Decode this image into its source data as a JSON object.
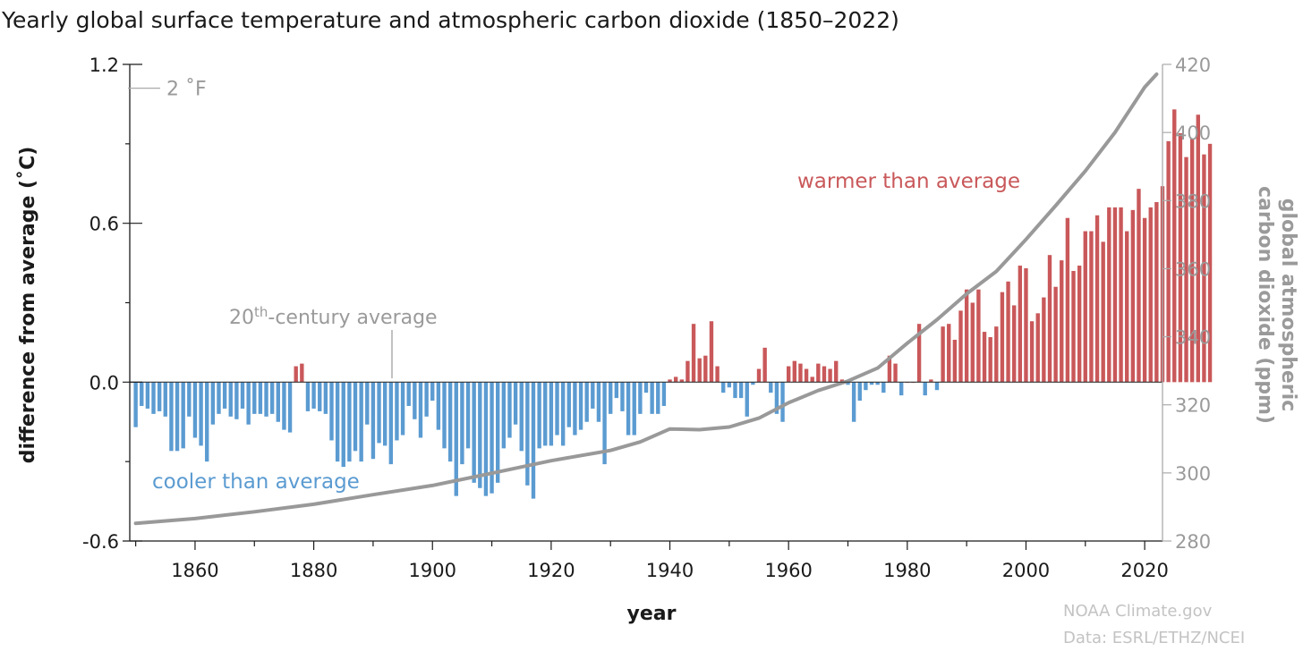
{
  "chart_data": {
    "type": "bar",
    "title": "Yearly global surface temperature and atmospheric carbon dioxide (1850–2022)",
    "xlabel": "year",
    "ylabel": "difference from average (˚C)",
    "y2label_line1": "global atmospheric",
    "y2label_line2": "carbon dioxide (ppm)",
    "xlim": [
      1849,
      2023
    ],
    "ylim": [
      -0.6,
      1.2
    ],
    "y2lim": [
      280,
      420
    ],
    "x_ticks": [
      "1860",
      "1880",
      "1900",
      "1920",
      "1940",
      "1960",
      "1980",
      "2000",
      "2020"
    ],
    "y_ticks": [
      "1.2",
      "0.6",
      "0.0",
      "-0.6"
    ],
    "y2_ticks": [
      "420",
      "400",
      "380",
      "360",
      "340",
      "320",
      "300",
      "280"
    ],
    "fahrenheit_marker": {
      "label": "2 ˚F",
      "value": 1.11
    },
    "colors": {
      "warm": "#c9585a",
      "cool": "#5b9bd1",
      "co2": "#999999",
      "axis": "#1a1a1a",
      "right_axis": "#aaaaaa"
    },
    "annotations": {
      "baseline_prefix": "20",
      "baseline_sup": "th",
      "baseline_suffix": "-century average",
      "warmer": "warmer than average",
      "cooler": "cooler than average"
    },
    "credits": [
      "NOAA Climate.gov",
      "Data: ESRL/ETHZ/NCEI"
    ],
    "series": [
      {
        "type": "bar",
        "start_year": 1850,
        "values": [
          -0.17,
          -0.09,
          -0.1,
          -0.12,
          -0.11,
          -0.13,
          -0.26,
          -0.26,
          -0.25,
          -0.13,
          -0.21,
          -0.24,
          -0.3,
          -0.16,
          -0.12,
          -0.1,
          -0.13,
          -0.14,
          -0.1,
          -0.16,
          -0.12,
          -0.12,
          -0.13,
          -0.12,
          -0.15,
          -0.18,
          -0.19,
          0.06,
          0.07,
          -0.11,
          -0.1,
          -0.11,
          -0.12,
          -0.22,
          -0.3,
          -0.32,
          -0.3,
          -0.26,
          -0.3,
          -0.16,
          -0.29,
          -0.23,
          -0.24,
          -0.31,
          -0.22,
          -0.2,
          -0.09,
          -0.14,
          -0.21,
          -0.13,
          -0.07,
          -0.18,
          -0.25,
          -0.3,
          -0.43,
          -0.31,
          -0.25,
          -0.38,
          -0.4,
          -0.43,
          -0.42,
          -0.38,
          -0.25,
          -0.21,
          -0.16,
          -0.26,
          -0.39,
          -0.44,
          -0.25,
          -0.24,
          -0.24,
          -0.2,
          -0.24,
          -0.17,
          -0.2,
          -0.18,
          -0.15,
          -0.1,
          -0.15,
          -0.31,
          -0.12,
          -0.06,
          -0.11,
          -0.2,
          -0.2,
          -0.12,
          -0.04,
          -0.12,
          -0.12,
          -0.09,
          0.01,
          0.02,
          0.01,
          0.08,
          0.22,
          0.09,
          0.1,
          0.23,
          0.06,
          -0.04,
          -0.02,
          -0.06,
          -0.06,
          -0.13,
          -0.01,
          0.05,
          0.13,
          -0.04,
          -0.12,
          -0.15,
          0.06,
          0.08,
          0.07,
          0.05,
          0.02,
          0.07,
          0.06,
          0.05,
          0.08,
          0.01,
          -0.01,
          -0.15,
          -0.07,
          -0.03,
          -0.01,
          -0.01,
          -0.04,
          0.1,
          0.07,
          -0.05,
          0.0,
          0.0,
          0.22,
          -0.05,
          0.01,
          -0.03,
          0.21,
          0.22,
          0.16,
          0.27,
          0.35,
          0.3,
          0.35,
          0.19,
          0.17,
          0.21,
          0.34,
          0.38,
          0.29,
          0.44,
          0.43,
          0.23,
          0.26,
          0.32,
          0.48,
          0.36,
          0.46,
          0.62,
          0.42,
          0.44,
          0.57,
          0.57,
          0.63,
          0.53,
          0.66,
          0.66,
          0.66,
          0.57,
          0.65,
          0.73,
          0.62,
          0.66,
          0.68,
          0.74,
          0.91,
          1.03,
          0.94,
          0.85,
          0.92,
          1.01,
          0.86,
          0.9
        ]
      },
      {
        "type": "line",
        "name": "global atmospheric carbon dioxide (ppm)",
        "x": [
          1850,
          1860,
          1870,
          1880,
          1890,
          1900,
          1910,
          1920,
          1930,
          1935,
          1940,
          1945,
          1950,
          1955,
          1960,
          1965,
          1970,
          1975,
          1980,
          1985,
          1990,
          1995,
          2000,
          2005,
          2010,
          2015,
          2020,
          2022
        ],
        "values": [
          285.2,
          286.6,
          288.6,
          290.8,
          293.6,
          296.3,
          299.9,
          303.6,
          306.6,
          309.1,
          312.9,
          312.7,
          313.5,
          316.1,
          320.6,
          324.2,
          327.0,
          330.8,
          338.1,
          345.0,
          352.6,
          359.2,
          368.6,
          378.5,
          388.7,
          400.0,
          413.3,
          417.1
        ]
      }
    ]
  }
}
